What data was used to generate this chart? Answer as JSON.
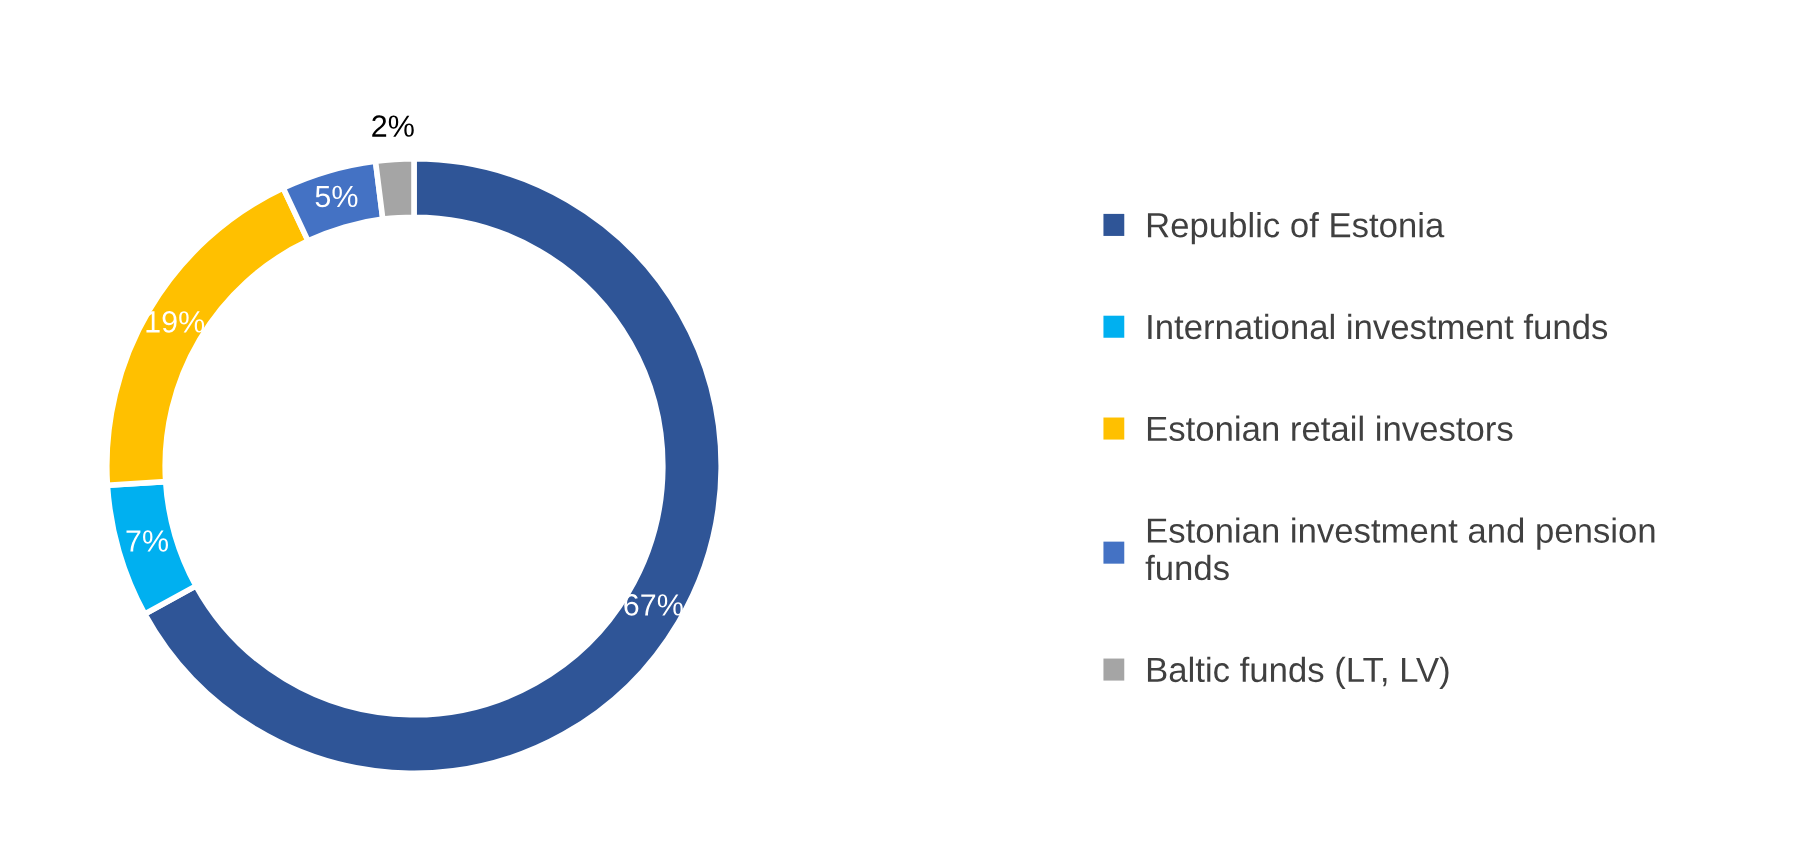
{
  "chart_data": {
    "type": "donut",
    "categories": [
      "Republic of Estonia",
      "International investment funds",
      "Estonian retail investors",
      "Estonian investment and pension funds",
      "Baltic funds (LT, LV)"
    ],
    "values": [
      67,
      7,
      19,
      5,
      2
    ],
    "colors": [
      "#2f5597",
      "#00b0f0",
      "#ffc000",
      "#4472c4",
      "#a5a5a5"
    ],
    "value_labels": [
      "67%",
      "7%",
      "19%",
      "5%",
      "2%"
    ],
    "legend": "right"
  }
}
